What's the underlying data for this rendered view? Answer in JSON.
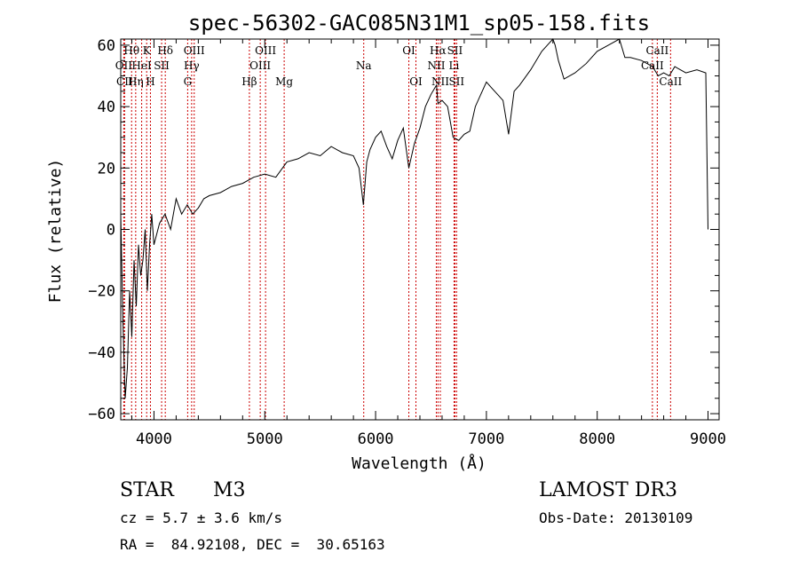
{
  "chart_data": {
    "type": "line",
    "title": "spec-56302-GAC085N31M1_sp05-158.fits",
    "xlabel": "Wavelength (Å)",
    "ylabel": "Flux (relative)",
    "xlim": [
      3700,
      9100
    ],
    "ylim": [
      -62,
      62
    ],
    "xticks": [
      4000,
      5000,
      6000,
      7000,
      8000,
      9000
    ],
    "yticks": [
      -60,
      -40,
      -20,
      0,
      20,
      40,
      60
    ],
    "series": [
      {
        "name": "flux",
        "x": [
          3700,
          3720,
          3740,
          3760,
          3780,
          3800,
          3820,
          3840,
          3860,
          3880,
          3900,
          3920,
          3940,
          3960,
          3980,
          4000,
          4050,
          4100,
          4150,
          4200,
          4250,
          4300,
          4350,
          4400,
          4450,
          4500,
          4600,
          4700,
          4800,
          4900,
          5000,
          5100,
          5200,
          5300,
          5400,
          5500,
          5600,
          5700,
          5800,
          5850,
          5890,
          5920,
          5950,
          6000,
          6050,
          6100,
          6150,
          6200,
          6250,
          6300,
          6350,
          6400,
          6450,
          6500,
          6550,
          6563,
          6600,
          6650,
          6700,
          6750,
          6800,
          6850,
          6900,
          6950,
          7000,
          7050,
          7100,
          7150,
          7200,
          7250,
          7300,
          7400,
          7500,
          7550,
          7600,
          7620,
          7650,
          7700,
          7800,
          7900,
          8000,
          8100,
          8200,
          8250,
          8300,
          8400,
          8500,
          8550,
          8600,
          8650,
          8700,
          8800,
          8900,
          8980,
          9000
        ],
        "y": [
          5,
          -30,
          -55,
          -45,
          -20,
          -35,
          -10,
          -25,
          -5,
          -15,
          -10,
          0,
          -20,
          -5,
          5,
          -5,
          2,
          5,
          0,
          10,
          5,
          8,
          5,
          7,
          10,
          11,
          12,
          14,
          15,
          17,
          18,
          17,
          22,
          23,
          25,
          24,
          27,
          25,
          24,
          20,
          8,
          22,
          26,
          30,
          32,
          27,
          23,
          29,
          33,
          20,
          28,
          33,
          40,
          44,
          47,
          41,
          42,
          40,
          30,
          29,
          31,
          32,
          40,
          44,
          48,
          46,
          44,
          42,
          31,
          45,
          47,
          52,
          58,
          60,
          62,
          60,
          55,
          49,
          51,
          54,
          58,
          60,
          62,
          56,
          56,
          55,
          53,
          50,
          51,
          50,
          53,
          51,
          52,
          51,
          0
        ]
      }
    ],
    "spectral_lines": [
      {
        "label": "Hθ",
        "x": 3798,
        "row": 1
      },
      {
        "label": "OII",
        "x": 3727,
        "row": 2
      },
      {
        "label": "CII",
        "x": 3735,
        "row": 3
      },
      {
        "label": "K",
        "x": 3934,
        "row": 1
      },
      {
        "label": "HeI",
        "x": 3889,
        "row": 2
      },
      {
        "label": "Hη",
        "x": 3835,
        "row": 3
      },
      {
        "label": "Hδ",
        "x": 4102,
        "row": 1
      },
      {
        "label": "SII",
        "x": 4069,
        "row": 2
      },
      {
        "label": "H",
        "x": 3968,
        "row": 3
      },
      {
        "label": "OIII",
        "x": 4363,
        "row": 1
      },
      {
        "label": "Hγ",
        "x": 4340,
        "row": 2
      },
      {
        "label": "G",
        "x": 4304,
        "row": 3
      },
      {
        "label": "OIII",
        "x": 5007,
        "row": 1
      },
      {
        "label": "OIII",
        "x": 4959,
        "row": 2
      },
      {
        "label": "Hβ",
        "x": 4861,
        "row": 3
      },
      {
        "label": "Mg",
        "x": 5175,
        "row": 3
      },
      {
        "label": "Na",
        "x": 5893,
        "row": 2
      },
      {
        "label": "OI",
        "x": 6300,
        "row": 1
      },
      {
        "label": "OI",
        "x": 6364,
        "row": 3
      },
      {
        "label": "Hα",
        "x": 6563,
        "row": 1
      },
      {
        "label": "SII",
        "x": 6716,
        "row": 1
      },
      {
        "label": "NII",
        "x": 6548,
        "row": 2
      },
      {
        "label": "Li",
        "x": 6708,
        "row": 2
      },
      {
        "label": "NII",
        "x": 6584,
        "row": 3
      },
      {
        "label": "SII",
        "x": 6731,
        "row": 3
      },
      {
        "label": "CaII",
        "x": 8542,
        "row": 1
      },
      {
        "label": "CaII",
        "x": 8498,
        "row": 2
      },
      {
        "label": "CaII",
        "x": 8662,
        "row": 3
      }
    ],
    "line_color": "#cc0000"
  },
  "info": {
    "object_type": "STAR",
    "subclass": "M3",
    "survey": "LAMOST DR3",
    "cz": "cz = 5.7 ± 3.6 km/s",
    "obs_date": "Obs-Date: 20130109",
    "radec": "RA =  84.92108, DEC =  30.65163"
  }
}
